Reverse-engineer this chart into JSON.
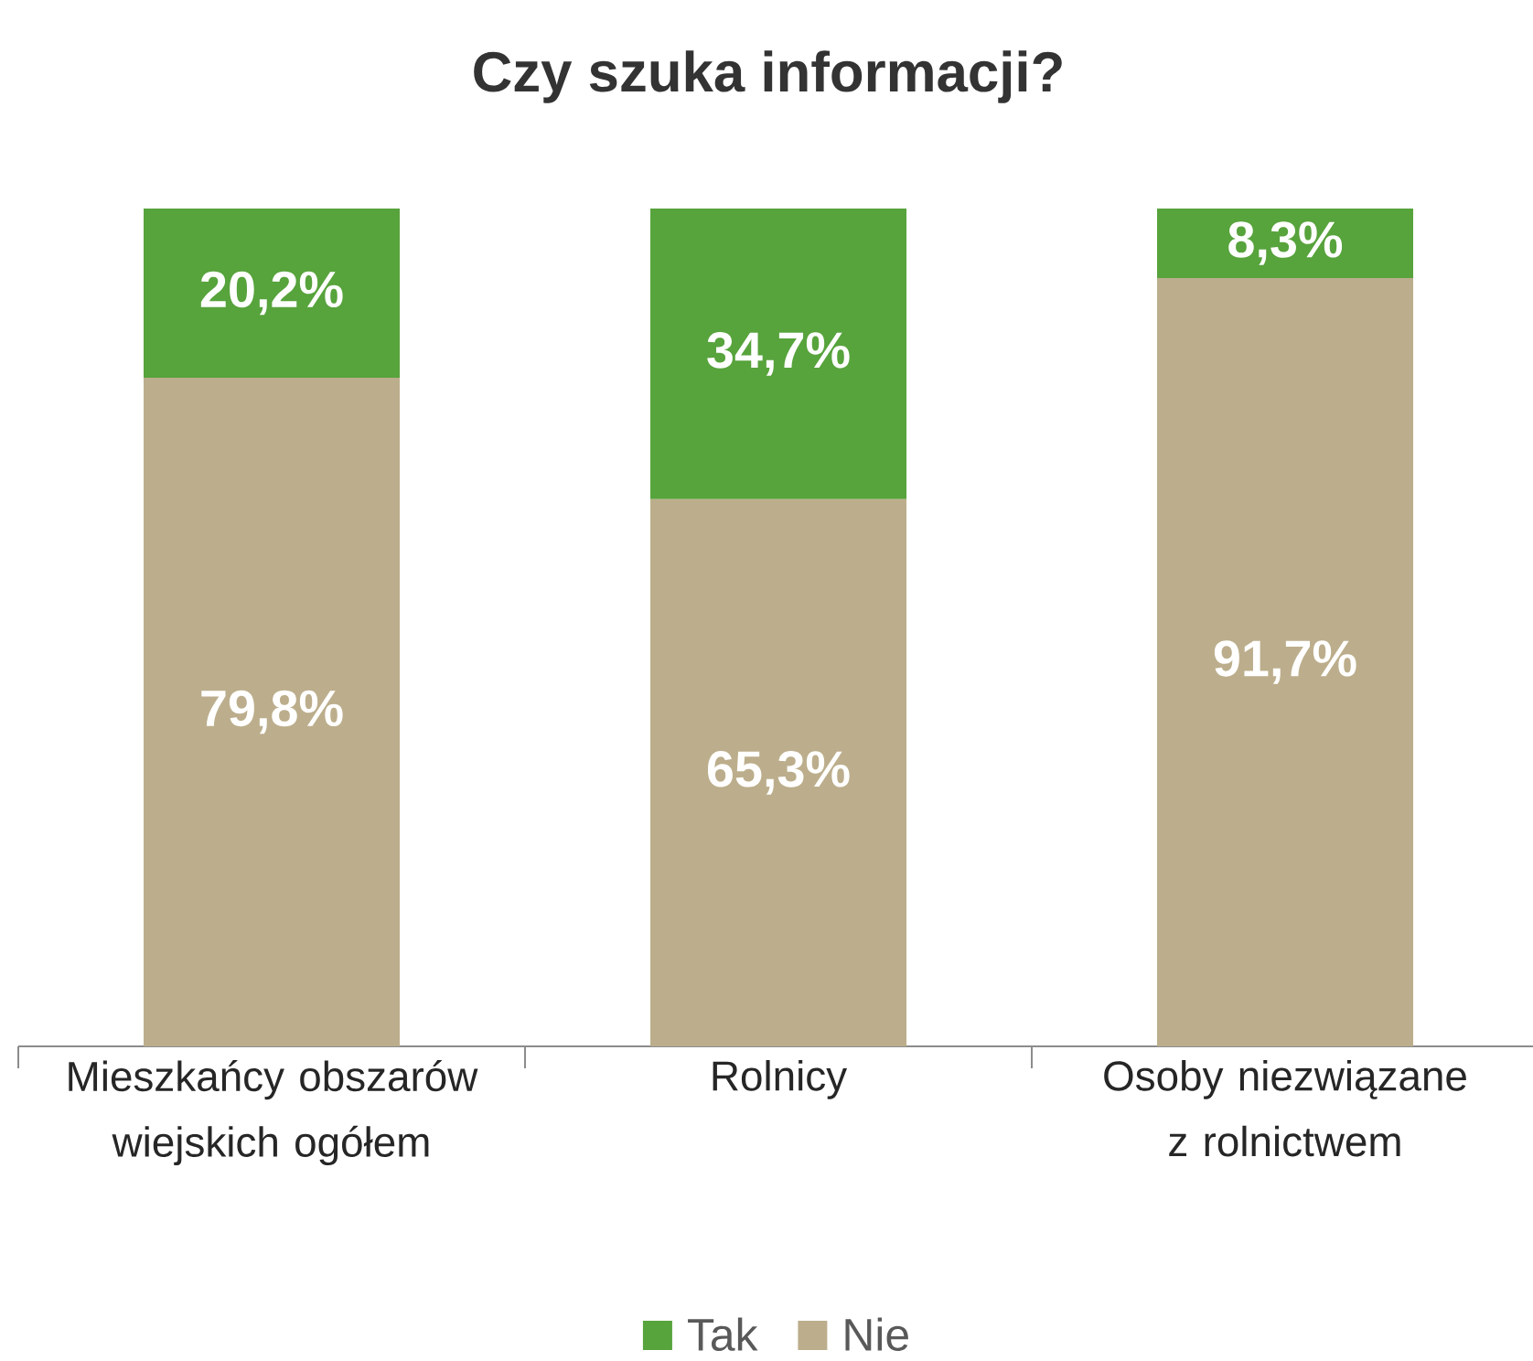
{
  "chart_data": {
    "type": "bar",
    "title": "Czy szuka informacji?",
    "stacked": true,
    "legend": "bottom",
    "categories": [
      "Mieszkańcy obszarów wiejskich ogółem",
      "Rolnicy",
      "Osoby niezwiązane z rolnictwem"
    ],
    "series": [
      {
        "name": "Nie",
        "color": "#bcae8c",
        "values": [
          79.8,
          65.3,
          91.7
        ],
        "value_labels": [
          "79,8%",
          "65,3%",
          "91,7%"
        ]
      },
      {
        "name": "Tak",
        "color": "#57a33c",
        "values": [
          20.2,
          34.7,
          8.3
        ],
        "value_labels": [
          "20,2%",
          "34,7%",
          "8,3%"
        ]
      }
    ]
  }
}
